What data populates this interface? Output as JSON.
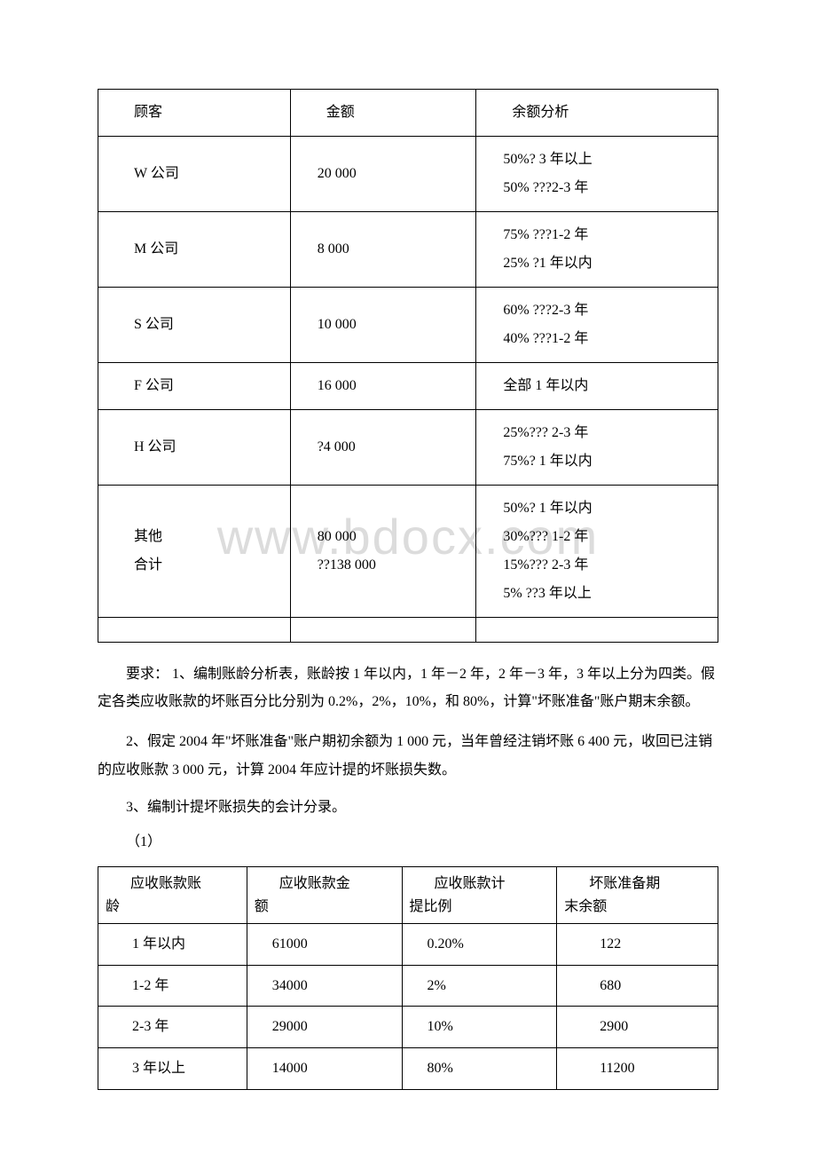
{
  "watermark": "www.bdocx.com",
  "table1": {
    "headers": [
      "顾客",
      "金额",
      "余额分析"
    ],
    "rows": [
      {
        "c0": "W 公司",
        "c1": "20 000",
        "c2": "50%? 3 年以上\n50% ???2-3 年"
      },
      {
        "c0": "M 公司",
        "c1": "8 000",
        "c2": "75% ???1-2 年\n25% ?1 年以内"
      },
      {
        "c0": "S 公司",
        "c1": "10 000",
        "c2": "60% ???2-3 年\n40% ???1-2 年"
      },
      {
        "c0": "F 公司",
        "c1": "16 000",
        "c2": "全部 1 年以内"
      },
      {
        "c0": "H 公司",
        "c1": "?4 000",
        "c2": "25%??? 2-3 年\n75%? 1 年以内"
      },
      {
        "c0": "其他\n合计",
        "c1": "80 000\n??138 000",
        "c2": "50%? 1 年以内\n30%??? 1-2 年\n15%??? 2-3 年\n5% ??3 年以上"
      }
    ]
  },
  "paragraphs": {
    "p1": "要求： 1、编制账龄分析表，账龄按 1 年以内，1 年－2 年，2 年－3 年，3 年以上分为四类。假定各类应收账款的坏账百分比分别为 0.2%，2%，10%，和 80%，计算\"坏账准备\"账户期末余额。",
    "p2": "2、假定 2004 年\"坏账准备\"账户期初余额为 1 000 元，当年曾经注销坏账 6 400 元，收回已注销的应收账款 3 000 元，计算 2004 年应计提的坏账损失数。",
    "p3": "3、编制计提坏账损失的会计分录。",
    "p4": "（1）"
  },
  "table2": {
    "headers": [
      {
        "l1": "应收账款账",
        "l2": "龄"
      },
      {
        "l1": "应收账款金",
        "l2": "额"
      },
      {
        "l1": "应收账款计",
        "l2": "提比例"
      },
      {
        "l1": "坏账准备期",
        "l2": "末余额"
      }
    ],
    "rows": [
      {
        "c0": "1 年以内",
        "c1": "61000",
        "c2": "0.20%",
        "c3": "122"
      },
      {
        "c0": "1-2 年",
        "c1": "34000",
        "c2": "2%",
        "c3": "680"
      },
      {
        "c0": "2-3 年",
        "c1": "29000",
        "c2": "10%",
        "c3": "2900"
      },
      {
        "c0": "3 年以上",
        "c1": "14000",
        "c2": "80%",
        "c3": "11200"
      }
    ]
  }
}
